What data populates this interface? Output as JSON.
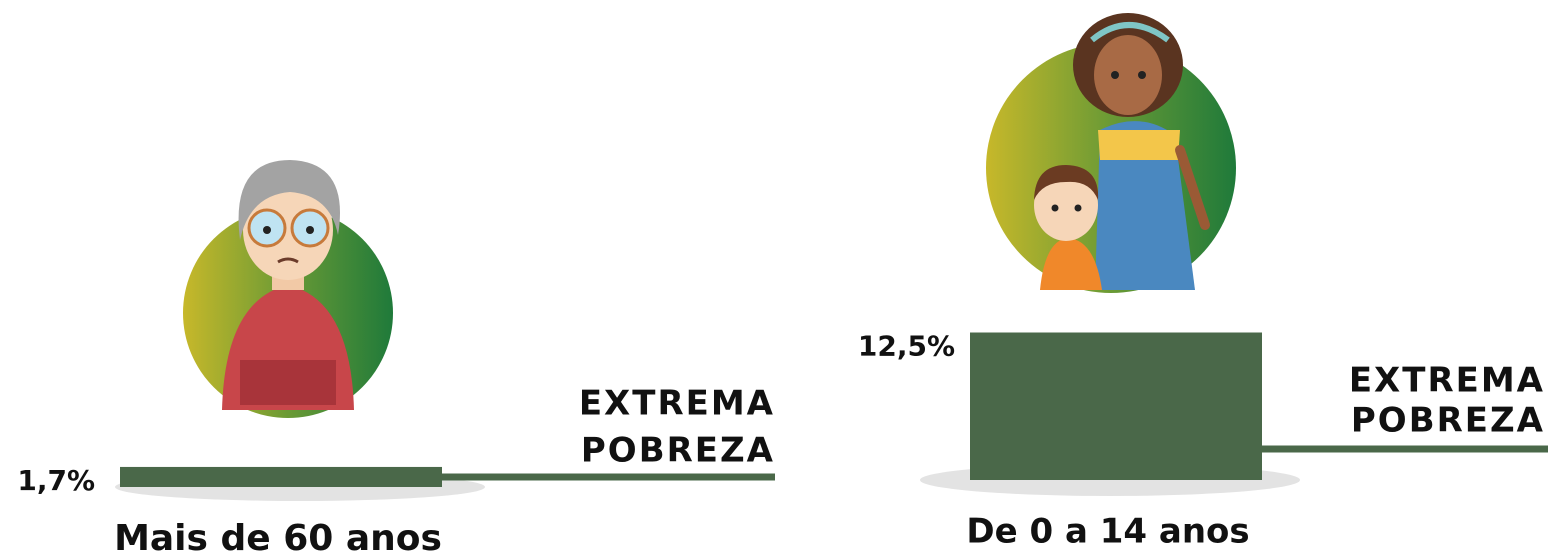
{
  "chart_data": [
    {
      "type": "bar",
      "categories": [
        "Mais de 60 anos"
      ],
      "values": [
        1.7
      ],
      "value_labels": [
        "1,7%"
      ],
      "color": "#4a6849",
      "annotation": [
        "EXTREMA",
        "POBREZA"
      ]
    },
    {
      "type": "bar",
      "categories": [
        "De 0 a 14 anos"
      ],
      "values": [
        12.5
      ],
      "value_labels": [
        "12,5%"
      ],
      "color": "#4a6849",
      "annotation": [
        "EXTREMA",
        "POBREZA"
      ]
    }
  ]
}
